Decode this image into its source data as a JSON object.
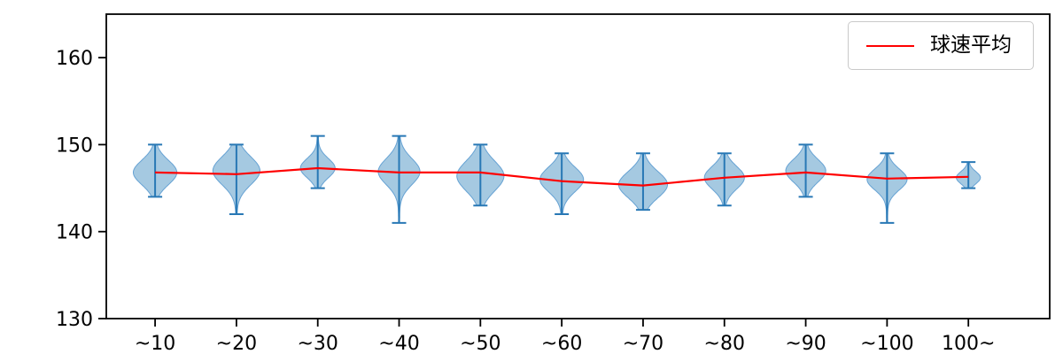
{
  "chart_data": {
    "type": "violin+line",
    "title": "",
    "xlabel": "",
    "ylabel": "",
    "categories": [
      "~10",
      "~20",
      "~30",
      "~40",
      "~50",
      "~60",
      "~70",
      "~80",
      "~90",
      "~100",
      "100~"
    ],
    "ylim": [
      130,
      165
    ],
    "yticks": [
      130,
      140,
      150,
      160
    ],
    "xlim": [
      0.4,
      12.0
    ],
    "grid": false,
    "legend_position": "upper right",
    "violins": [
      {
        "category": "~10",
        "min": 144.0,
        "max": 150.0,
        "mode": 146.8,
        "sigma": 1.4,
        "halfwidth": 24
      },
      {
        "category": "~20",
        "min": 142.0,
        "max": 150.0,
        "mode": 147.0,
        "sigma": 1.6,
        "halfwidth": 26
      },
      {
        "category": "~30",
        "min": 145.0,
        "max": 151.0,
        "mode": 147.3,
        "sigma": 1.1,
        "halfwidth": 19
      },
      {
        "category": "~40",
        "min": 141.0,
        "max": 151.0,
        "mode": 146.9,
        "sigma": 1.5,
        "halfwidth": 23
      },
      {
        "category": "~50",
        "min": 143.0,
        "max": 150.0,
        "mode": 146.4,
        "sigma": 1.7,
        "halfwidth": 26
      },
      {
        "category": "~60",
        "min": 142.0,
        "max": 149.0,
        "mode": 146.0,
        "sigma": 1.4,
        "halfwidth": 24
      },
      {
        "category": "~70",
        "min": 142.5,
        "max": 149.0,
        "mode": 145.4,
        "sigma": 1.5,
        "halfwidth": 27
      },
      {
        "category": "~80",
        "min": 143.0,
        "max": 149.0,
        "mode": 146.2,
        "sigma": 1.3,
        "halfwidth": 22
      },
      {
        "category": "~90",
        "min": 144.0,
        "max": 150.0,
        "mode": 147.0,
        "sigma": 1.3,
        "halfwidth": 22
      },
      {
        "category": "~100",
        "min": 141.0,
        "max": 149.0,
        "mode": 146.0,
        "sigma": 1.2,
        "halfwidth": 22
      },
      {
        "category": "100~",
        "min": 145.0,
        "max": 148.0,
        "mode": 146.2,
        "sigma": 0.7,
        "halfwidth": 13
      }
    ],
    "mean_series": {
      "name": "球速平均",
      "values": [
        146.8,
        146.6,
        147.3,
        146.8,
        146.8,
        145.8,
        145.3,
        146.2,
        146.8,
        146.1,
        146.3
      ],
      "color": "#ff0000"
    },
    "colors": {
      "violin_fill": "#1f77b4",
      "violin_fill_opacity": 0.4,
      "violin_edge": "#5b9bd0",
      "whisker": "#2878b5",
      "axis": "#000000"
    },
    "legend": {
      "label": "球速平均"
    }
  }
}
